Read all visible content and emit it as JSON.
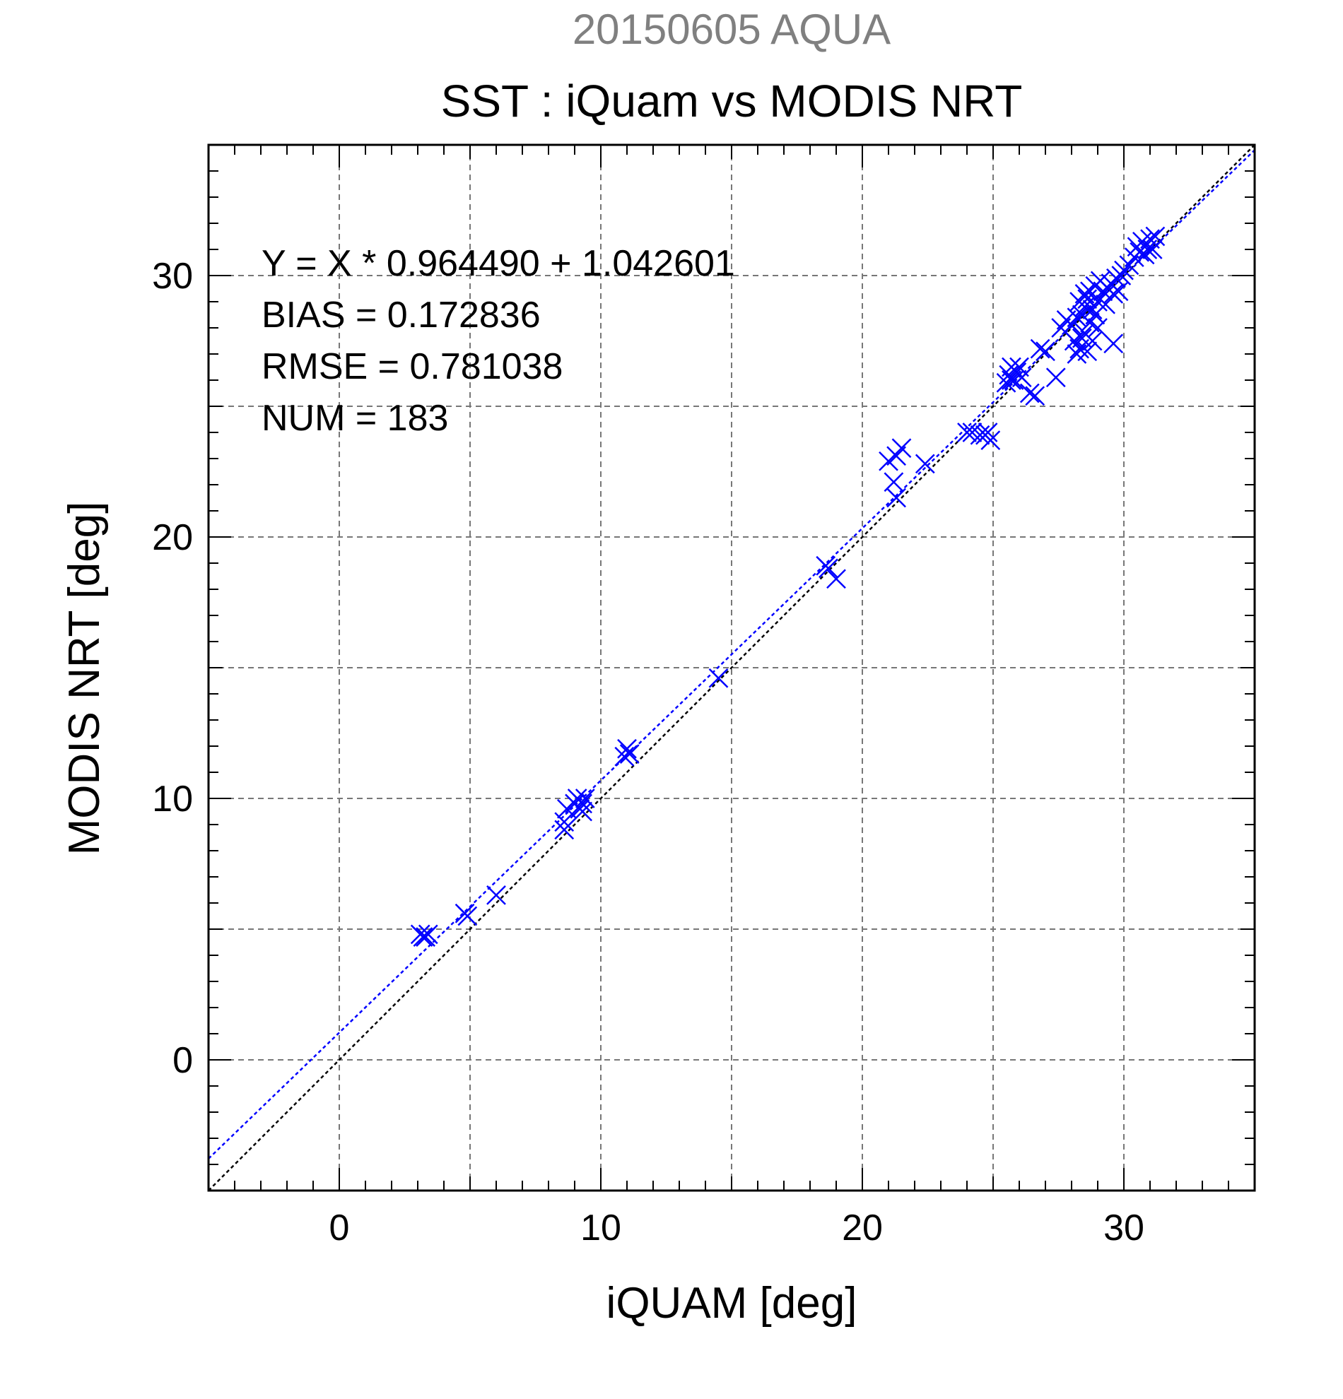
{
  "chart_data": {
    "type": "scatter",
    "title": "20150605 AQUA",
    "subtitle": "SST : iQuam vs MODIS NRT",
    "xlabel": "iQUAM [deg]",
    "ylabel": "MODIS NRT [deg]",
    "xlim": [
      -5,
      35
    ],
    "ylim": [
      -5,
      35
    ],
    "xticks": [
      "0",
      "10",
      "20",
      "30"
    ],
    "yticks": [
      "0",
      "10",
      "20",
      "30"
    ],
    "grid": true,
    "colors": {
      "points": "#0000ff",
      "fit_line": "#0000ff",
      "identity_line": "#000000",
      "title": "#808080",
      "text": "#000000",
      "grid": "#777777"
    },
    "stats": [
      "Y = X * 0.964490 + 1.042601",
      "BIAS = 0.172836",
      "RMSE = 0.781038",
      "NUM = 183"
    ],
    "fit": {
      "slope": 0.96449,
      "intercept": 1.042601
    },
    "points": [
      [
        3.1,
        4.8
      ],
      [
        3.3,
        4.7
      ],
      [
        3.4,
        4.8
      ],
      [
        3.2,
        4.7
      ],
      [
        4.8,
        5.6
      ],
      [
        4.9,
        5.5
      ],
      [
        6.0,
        6.3
      ],
      [
        8.6,
        8.8
      ],
      [
        8.6,
        9.1
      ],
      [
        8.7,
        9.6
      ],
      [
        9.0,
        9.8
      ],
      [
        9.1,
        10.0
      ],
      [
        9.2,
        9.6
      ],
      [
        9.3,
        9.8
      ],
      [
        9.4,
        10.0
      ],
      [
        9.3,
        9.5
      ],
      [
        11.0,
        11.9
      ],
      [
        11.1,
        11.7
      ],
      [
        10.9,
        11.6
      ],
      [
        14.5,
        14.6
      ],
      [
        18.6,
        18.9
      ],
      [
        18.7,
        18.8
      ],
      [
        19.0,
        18.4
      ],
      [
        21.0,
        22.9
      ],
      [
        21.3,
        23.1
      ],
      [
        21.5,
        23.4
      ],
      [
        21.2,
        22.1
      ],
      [
        21.3,
        21.5
      ],
      [
        22.4,
        22.8
      ],
      [
        24.0,
        24.0
      ],
      [
        24.2,
        24.0
      ],
      [
        24.5,
        23.9
      ],
      [
        24.7,
        23.9
      ],
      [
        24.9,
        23.7
      ],
      [
        24.8,
        24.0
      ],
      [
        25.5,
        25.9
      ],
      [
        25.6,
        26.2
      ],
      [
        25.7,
        26.5
      ],
      [
        25.8,
        26.0
      ],
      [
        25.9,
        26.3
      ],
      [
        26.0,
        26.5
      ],
      [
        26.1,
        26.1
      ],
      [
        25.7,
        26.0
      ],
      [
        26.4,
        25.5
      ],
      [
        26.6,
        25.4
      ],
      [
        26.8,
        27.2
      ],
      [
        27.0,
        27.1
      ],
      [
        27.4,
        26.1
      ],
      [
        27.6,
        28.0
      ],
      [
        27.8,
        28.3
      ],
      [
        28.0,
        28.1
      ],
      [
        28.1,
        27.5
      ],
      [
        28.2,
        28.4
      ],
      [
        28.2,
        27.0
      ],
      [
        28.3,
        27.2
      ],
      [
        28.4,
        27.6
      ],
      [
        28.4,
        28.5
      ],
      [
        28.5,
        28.8
      ],
      [
        28.5,
        27.8
      ],
      [
        28.6,
        29.1
      ],
      [
        28.6,
        27.1
      ],
      [
        28.7,
        28.2
      ],
      [
        28.7,
        29.4
      ],
      [
        28.8,
        27.5
      ],
      [
        28.8,
        28.7
      ],
      [
        28.9,
        29.6
      ],
      [
        29.0,
        28.0
      ],
      [
        29.0,
        29.0
      ],
      [
        29.1,
        29.8
      ],
      [
        29.2,
        29.4
      ],
      [
        29.3,
        28.9
      ],
      [
        29.4,
        29.5
      ],
      [
        29.5,
        29.7
      ],
      [
        29.6,
        29.3
      ],
      [
        29.6,
        27.4
      ],
      [
        29.7,
        29.9
      ],
      [
        29.8,
        29.4
      ],
      [
        29.9,
        30.0
      ],
      [
        30.0,
        30.2
      ],
      [
        30.2,
        30.4
      ],
      [
        30.4,
        30.7
      ],
      [
        30.5,
        31.1
      ],
      [
        30.6,
        30.9
      ],
      [
        30.7,
        31.3
      ],
      [
        30.8,
        30.8
      ],
      [
        30.9,
        31.0
      ],
      [
        31.0,
        31.4
      ],
      [
        31.1,
        31.0
      ],
      [
        31.2,
        31.5
      ],
      [
        28.3,
        29.0
      ],
      [
        28.5,
        29.3
      ],
      [
        28.9,
        28.5
      ]
    ]
  }
}
